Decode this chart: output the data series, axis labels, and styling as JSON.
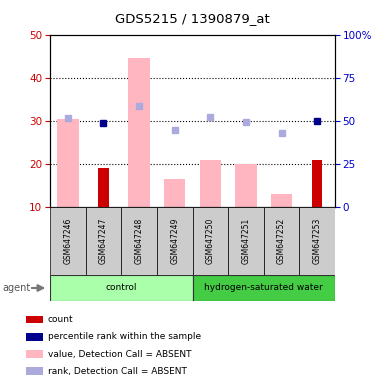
{
  "title": "GDS5215 / 1390879_at",
  "samples": [
    "GSM647246",
    "GSM647247",
    "GSM647248",
    "GSM647249",
    "GSM647250",
    "GSM647251",
    "GSM647252",
    "GSM647253"
  ],
  "bar_values_pink": [
    30.5,
    null,
    44.5,
    16.5,
    21.0,
    20.0,
    13.0,
    null
  ],
  "bar_values_red": [
    null,
    19.0,
    null,
    null,
    null,
    null,
    null,
    21.0
  ],
  "rank_dots_blue_left": [
    null,
    29.5,
    null,
    null,
    null,
    null,
    null,
    30.0
  ],
  "rank_dots_lightblue_left": [
    30.7,
    null,
    33.5,
    28.0,
    31.0,
    29.8,
    27.2,
    null
  ],
  "ylim_left": [
    10,
    50
  ],
  "ylim_right": [
    0,
    100
  ],
  "yticks_left": [
    10,
    20,
    30,
    40,
    50
  ],
  "yticks_right": [
    0,
    25,
    50,
    75,
    100
  ],
  "ytick_labels_right": [
    "0",
    "25",
    "50",
    "75",
    "100%"
  ],
  "pink_color": "#ffb6c1",
  "red_color": "#cc0000",
  "blue_color": "#00008b",
  "lightblue_color": "#aaaadd",
  "left_axis_color": "#cc0000",
  "right_axis_color": "#0000cc",
  "ctrl_color": "#aaffaa",
  "h2_color": "#44cc44",
  "sample_box_color": "#cccccc",
  "group_border_color": "#333333"
}
